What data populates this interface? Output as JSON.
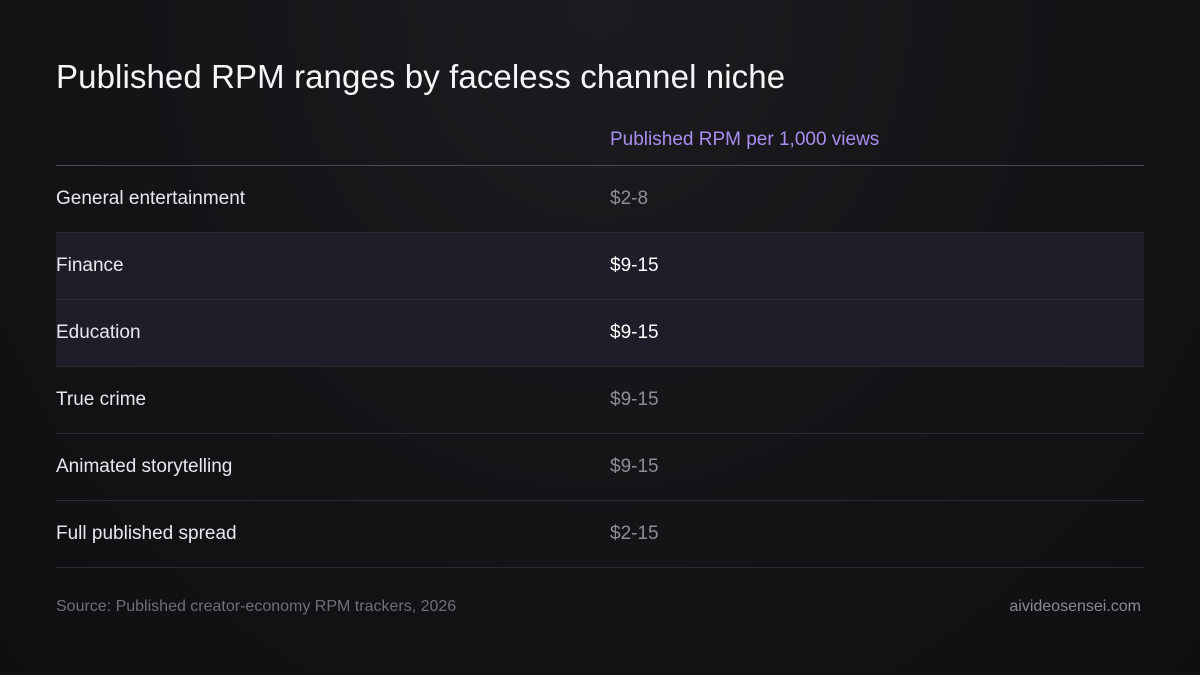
{
  "title": "Published RPM ranges by faceless channel niche",
  "chart_data": {
    "type": "table",
    "title": "Published RPM ranges by faceless channel niche",
    "columns": [
      "",
      "Published RPM per 1,000 views"
    ],
    "rows": [
      {
        "niche": "General entertainment",
        "rpm": "$2-8",
        "rpm_min": 2,
        "rpm_max": 8,
        "highlighted": false
      },
      {
        "niche": "Finance",
        "rpm": "$9-15",
        "rpm_min": 9,
        "rpm_max": 15,
        "highlighted": true
      },
      {
        "niche": "Education",
        "rpm": "$9-15",
        "rpm_min": 9,
        "rpm_max": 15,
        "highlighted": true
      },
      {
        "niche": "True crime",
        "rpm": "$9-15",
        "rpm_min": 9,
        "rpm_max": 15,
        "highlighted": false
      },
      {
        "niche": "Animated storytelling",
        "rpm": "$9-15",
        "rpm_min": 9,
        "rpm_max": 15,
        "highlighted": false
      },
      {
        "niche": "Full published spread",
        "rpm": "$2-15",
        "rpm_min": 2,
        "rpm_max": 15,
        "highlighted": false
      }
    ]
  },
  "footer": {
    "source": "Source: Published creator-economy RPM trackers, 2026",
    "site": "aivideosensei.com"
  },
  "colors": {
    "accent": "#a98ef0",
    "highlight_row": "#1f1d2a",
    "background": "#141417"
  }
}
